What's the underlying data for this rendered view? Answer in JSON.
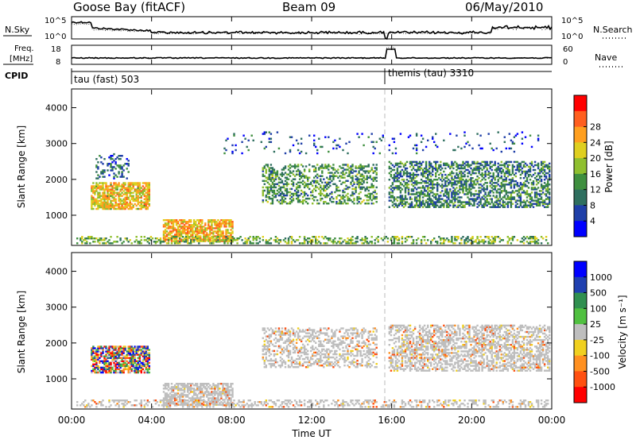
{
  "header": {
    "station": "Goose Bay (fitACF)",
    "beam": "Beam 09",
    "date": "06/May/2010"
  },
  "sky_panel": {
    "left_label": "N.Sky",
    "right_label": "N.Search",
    "left_ticks": [
      "10^5",
      "10^0"
    ],
    "right_ticks": [
      "10^5",
      "10^0"
    ]
  },
  "freq_panel": {
    "left_label_line1": "Freq.",
    "left_label_line2": "[MHz]",
    "right_label": "Nave",
    "left_ticks": [
      "18",
      "8"
    ],
    "right_ticks": [
      "60",
      "0"
    ]
  },
  "cpid": {
    "label": "CPID",
    "entries": [
      "tau (fast) 503",
      "themis (tau) 3310"
    ]
  },
  "colors": {
    "power": [
      "#0000ff",
      "#1f3fa8",
      "#2f6f5f",
      "#3f8f3f",
      "#8fbf2f",
      "#dfcf1f",
      "#ff9f1f",
      "#ff5f1f",
      "#ff0000"
    ],
    "velocity": [
      "#0000ff",
      "#2040b0",
      "#309050",
      "#50c040",
      "#bebebe",
      "#f0d020",
      "#ff9020",
      "#ff5010",
      "#ff0000"
    ],
    "ground_scatter": "#bebebe"
  },
  "chart_data": [
    {
      "type": "heatmap",
      "title": "",
      "xlabel": "",
      "ylabel": "Slant Range [km]",
      "y_ticks": [
        "1000",
        "2000",
        "3000",
        "4000"
      ],
      "ylim": [
        180,
        4500
      ],
      "xlim": [
        0,
        24
      ],
      "colorbar": {
        "label": "Power [dB]",
        "ticks": [
          "4",
          "8",
          "12",
          "16",
          "20",
          "24",
          "28"
        ],
        "range": [
          0,
          32
        ]
      },
      "scatter_regions": [
        {
          "t0": 0.9,
          "t1": 3.9,
          "r0": 1150,
          "r1": 1900,
          "level": 20,
          "density": 0.75
        },
        {
          "t0": 1.2,
          "t1": 2.8,
          "r0": 2000,
          "r1": 2700,
          "level": 8,
          "density": 0.25
        },
        {
          "t0": 4.5,
          "t1": 8.0,
          "r0": 250,
          "r1": 850,
          "level": 22,
          "density": 0.7
        },
        {
          "t0": 0.2,
          "t1": 23.8,
          "r0": 190,
          "r1": 400,
          "level": 14,
          "density": 0.35
        },
        {
          "t0": 9.5,
          "t1": 15.2,
          "r0": 1300,
          "r1": 2400,
          "level": 12,
          "density": 0.4
        },
        {
          "t0": 15.8,
          "t1": 23.9,
          "r0": 1200,
          "r1": 2500,
          "level": 10,
          "density": 0.5
        },
        {
          "t0": 7.5,
          "t1": 23.5,
          "r0": 2700,
          "r1": 3300,
          "level": 6,
          "density": 0.06
        }
      ]
    },
    {
      "type": "heatmap",
      "title": "",
      "xlabel": "Time UT",
      "ylabel": "Slant Range [km]",
      "y_ticks": [
        "1000",
        "2000",
        "3000",
        "4000"
      ],
      "x_ticks": [
        "00:00",
        "04:00",
        "08:00",
        "12:00",
        "16:00",
        "20:00",
        "00:00"
      ],
      "ylim": [
        180,
        4500
      ],
      "xlim": [
        0,
        24
      ],
      "colorbar": {
        "label": "Velocity [m s⁻¹]",
        "ticks": [
          "1000",
          "500",
          "100",
          "25",
          "-25",
          "-100",
          "-500",
          "-1000"
        ],
        "range": [
          -1000,
          1000
        ]
      },
      "scatter_regions": [
        {
          "t0": 0.9,
          "t1": 3.9,
          "r0": 1150,
          "r1": 1900,
          "kind": "mixed",
          "density": 0.7
        },
        {
          "t0": 4.5,
          "t1": 8.0,
          "r0": 250,
          "r1": 850,
          "kind": "ground",
          "density": 0.65
        },
        {
          "t0": 0.2,
          "t1": 23.8,
          "r0": 190,
          "r1": 400,
          "kind": "ground",
          "density": 0.35
        },
        {
          "t0": 9.5,
          "t1": 15.2,
          "r0": 1300,
          "r1": 2400,
          "kind": "ground",
          "density": 0.4
        },
        {
          "t0": 15.8,
          "t1": 23.9,
          "r0": 1200,
          "r1": 2500,
          "kind": "ground",
          "density": 0.5
        }
      ]
    }
  ]
}
